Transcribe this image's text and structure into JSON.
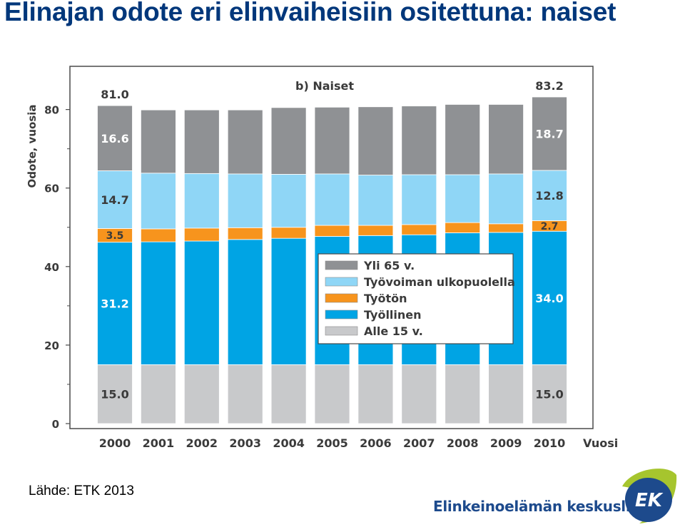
{
  "slide": {
    "title": "Elinajan odote eri elinvaiheisiin ositettuna: naiset",
    "source": "Lähde: ETK 2013",
    "organization": "Elinkeinoelämän keskusliitto",
    "logo_text": "EK"
  },
  "colors": {
    "Alle 15 v.": "#c8c9cb",
    "Työllinen": "#00a4e4",
    "Työtön": "#f7941d",
    "Työvoiman ulkopuolella": "#8fd6f6",
    "Yli 65 v.": "#8f9194",
    "frame": "#4a4a4a",
    "title": "#00377b",
    "label_dark": "#3a3a3a",
    "label_light": "#ffffff",
    "logo_blue": "#1d4a8c",
    "logo_green": "#a6c52e"
  },
  "chart_data": {
    "type": "bar",
    "stacked": true,
    "title": "b) Naiset",
    "xlabel": "Vuosi",
    "ylabel": "Odote, vuosia",
    "ylim": [
      0,
      88
    ],
    "yticks": [
      0,
      20,
      40,
      60,
      80
    ],
    "categories": [
      "2000",
      "2001",
      "2002",
      "2003",
      "2004",
      "2005",
      "2006",
      "2007",
      "2008",
      "2009",
      "2010"
    ],
    "series": [
      {
        "name": "Alle 15 v.",
        "values": [
          15.0,
          15.0,
          15.0,
          15.0,
          15.0,
          15.0,
          15.0,
          15.0,
          15.0,
          15.0,
          15.0
        ]
      },
      {
        "name": "Työllinen",
        "values": [
          31.2,
          31.3,
          31.5,
          31.9,
          32.2,
          32.7,
          32.9,
          33.1,
          33.6,
          33.7,
          34.0
        ]
      },
      {
        "name": "Työtön",
        "values": [
          3.5,
          3.3,
          3.3,
          3.0,
          2.8,
          2.8,
          2.6,
          2.6,
          2.6,
          2.2,
          2.7
        ]
      },
      {
        "name": "Työvoiman ulkopuolella",
        "values": [
          14.7,
          14.2,
          13.9,
          13.7,
          13.5,
          13.1,
          12.8,
          12.7,
          12.2,
          12.7,
          12.8
        ]
      },
      {
        "name": "Yli 65 v.",
        "values": [
          16.6,
          16.1,
          16.2,
          16.3,
          17.0,
          17.0,
          17.4,
          17.5,
          17.9,
          17.7,
          18.7
        ]
      }
    ],
    "totals_labeled": {
      "2000": "81.0",
      "2010": "83.2"
    },
    "segment_labels": {
      "2000": [
        "15.0",
        "31.2",
        "3.5",
        "14.7",
        "16.6"
      ],
      "2010": [
        "15.0",
        "34.0",
        "2.7",
        "12.8",
        "18.7"
      ]
    },
    "legend": {
      "position": "inside-right",
      "order": [
        "Yli 65 v.",
        "Työvoiman ulkopuolella",
        "Työtön",
        "Työllinen",
        "Alle 15 v."
      ]
    }
  }
}
